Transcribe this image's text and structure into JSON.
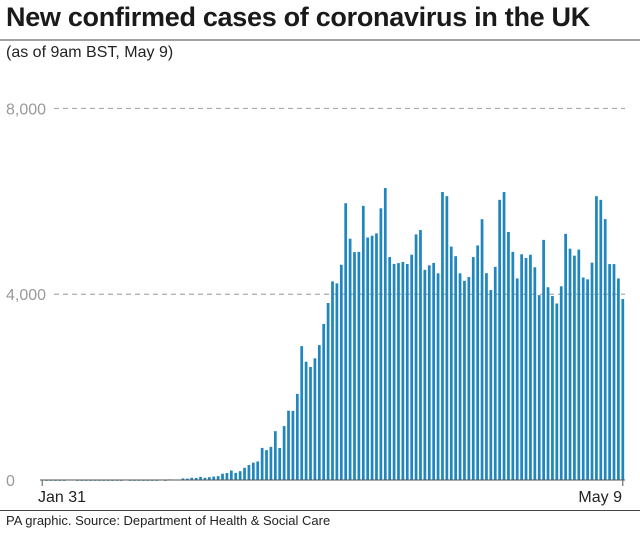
{
  "chart_data": {
    "type": "bar",
    "title": "New confirmed cases of coronavirus in the UK",
    "subtitle": "(as of 9am BST, May 9)",
    "source": "PA graphic. Source: Department of Health & Social Care",
    "x_start_label": "Jan 31",
    "x_end_label": "May 9",
    "yticks": [
      0,
      4000,
      8000
    ],
    "ytick_labels": [
      "0",
      "4,000",
      "8,000"
    ],
    "ylim": [
      0,
      9000
    ],
    "grid": "horizontal dashed",
    "bar_color": "#1f86be",
    "values": [
      2,
      0,
      0,
      0,
      0,
      0,
      1,
      1,
      0,
      0,
      0,
      0,
      0,
      0,
      0,
      0,
      0,
      0,
      0,
      1,
      0,
      0,
      0,
      0,
      0,
      0,
      0,
      4,
      0,
      13,
      3,
      11,
      34,
      30,
      48,
      43,
      67,
      48,
      61,
      74,
      83,
      135,
      150,
      205,
      153,
      190,
      262,
      322,
      373,
      400,
      691,
      643,
      714,
      1051,
      688,
      1161,
      1492,
      1488,
      1854,
      2882,
      2546,
      2433,
      2619,
      2904,
      3360,
      3811,
      4276,
      4233,
      4634,
      5959,
      5195,
      4906,
      4912,
      5903,
      5221,
      5260,
      5310,
      5850,
      6286,
      4801,
      4652,
      4670,
      4695,
      4650,
      4851,
      5288,
      5382,
      4525,
      4622,
      4674,
      4450,
      6201,
      6112,
      5025,
      4819,
      4450,
      4289,
      4370,
      4800,
      5050,
      5615,
      4453,
      4090,
      4590,
      6032,
      6200,
      5340,
      4911,
      4340,
      4860,
      4780,
      4850,
      4580,
      3980,
      5170,
      4150,
      3960,
      3800,
      4170,
      5300,
      4980,
      4830,
      4960,
      4360,
      4320,
      4680,
      6111,
      6032,
      5617,
      4649,
      4649,
      4339,
      3896
    ]
  }
}
